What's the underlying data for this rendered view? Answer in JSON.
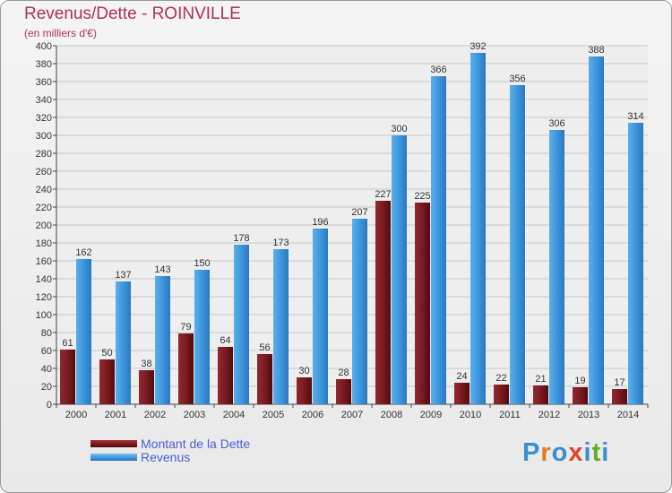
{
  "title": "Revenus/Dette - ROINVILLE",
  "subtitle": "(en milliers d'€)",
  "logo": {
    "text": "Proxiti",
    "letter_colors": [
      "#3a8fd0",
      "#e07a20",
      "#3a8fd0",
      "#e0462a",
      "#3a8fd0",
      "#6aa82e",
      "#3a8fd0"
    ]
  },
  "colors": {
    "dette": "#7a1a1f",
    "revenus": "#3d96dc",
    "title": "#b0305a",
    "legend_text": "#4a5ed8"
  },
  "chart_data": {
    "type": "bar",
    "title": "Revenus/Dette - ROINVILLE",
    "subtitle": "(en milliers d'€)",
    "categories": [
      "2000",
      "2001",
      "2002",
      "2003",
      "2004",
      "2005",
      "2006",
      "2007",
      "2008",
      "2009",
      "2010",
      "2011",
      "2012",
      "2013",
      "2014"
    ],
    "series": [
      {
        "name": "Montant de la Dette",
        "values": [
          61,
          50,
          38,
          79,
          64,
          56,
          30,
          28,
          227,
          225,
          24,
          22,
          21,
          19,
          17
        ]
      },
      {
        "name": "Revenus",
        "values": [
          162,
          137,
          143,
          150,
          178,
          173,
          196,
          207,
          300,
          366,
          392,
          356,
          306,
          388,
          314
        ]
      }
    ],
    "ylim": [
      0,
      400
    ],
    "ytick_step": 20,
    "grid": true,
    "legend_position": "bottom-left"
  }
}
